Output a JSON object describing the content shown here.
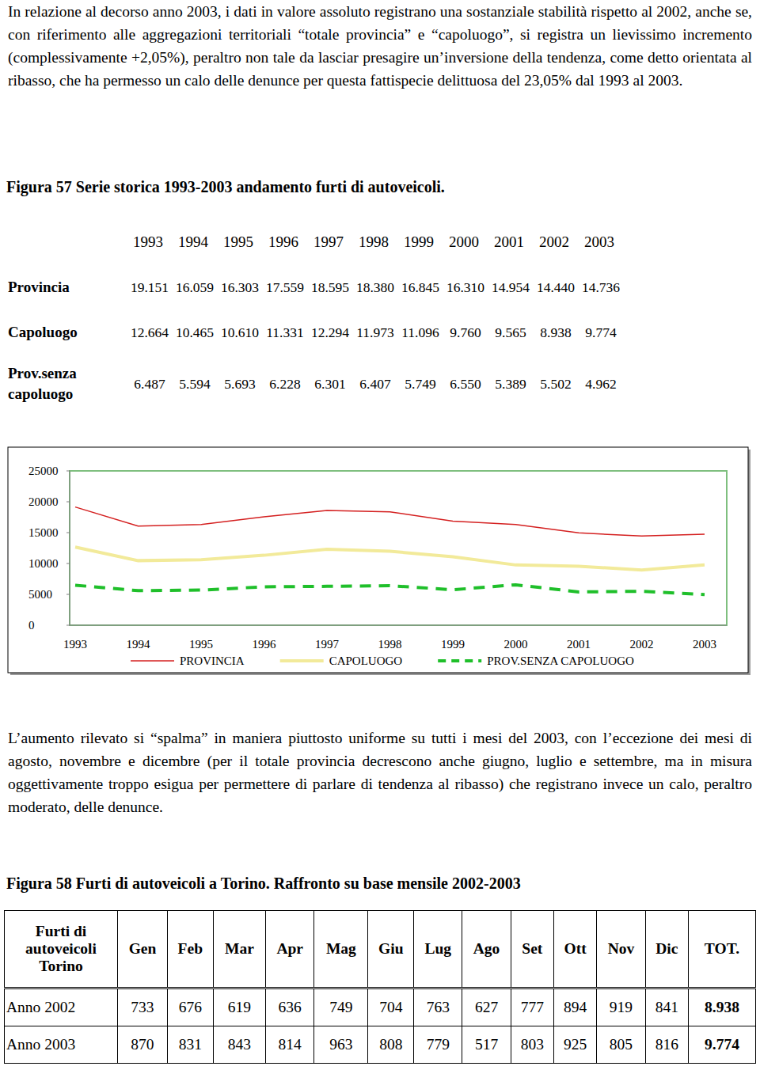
{
  "paragraphs": [
    "In relazione al decorso anno 2003, i dati in valore assoluto registrano una sostanziale stabilità rispetto al 2002, anche se, con riferimento alle aggregazioni territoriali “totale provincia” e “capoluogo”, si registra un lievissimo incremento (complessivamente +2,05%), peraltro non tale da lasciar presagire un’inversione della tendenza, come detto orientata al ribasso, che ha permesso un calo delle denunce per questa fattispecie delittuosa del 23,05% dal 1993 al 2003.",
    "L’aumento rilevato si “spalma” in maniera piuttosto uniforme su tutti i mesi del 2003, con l’eccezione dei mesi di agosto, novembre e dicembre (per il totale provincia decrescono anche giugno, luglio e settembre, ma in misura oggettivamente troppo esigua per permettere di parlare di tendenza al ribasso) che registrano invece un calo, peraltro moderato, delle denunce."
  ],
  "figure57": {
    "caption": "Figura 57 Serie storica 1993-2003 andamento furti di autoveicoli.",
    "table": {
      "columns": [
        "1993",
        "1994",
        "1995",
        "1996",
        "1997",
        "1998",
        "1999",
        "2000",
        "2001",
        "2002",
        "2003"
      ],
      "rows": [
        {
          "label": "Provincia",
          "values": [
            "19.151",
            "16.059",
            "16.303",
            "17.559",
            "18.595",
            "18.380",
            "16.845",
            "16.310",
            "14.954",
            "14.440",
            "14.736"
          ]
        },
        {
          "label": "Capoluogo",
          "values": [
            "12.664",
            "10.465",
            "10.610",
            "11.331",
            "12.294",
            "11.973",
            "11.096",
            "9.760",
            "9.565",
            "8.938",
            "9.774"
          ]
        },
        {
          "label": "Prov.senza capoluogo",
          "values": [
            "6.487",
            "5.594",
            "5.693",
            "6.228",
            "6.301",
            "6.407",
            "5.749",
            "6.550",
            "5.389",
            "5.502",
            "4.962"
          ]
        }
      ]
    }
  },
  "chart_data": {
    "type": "line",
    "categories": [
      "1993",
      "1994",
      "1995",
      "1996",
      "1997",
      "1998",
      "1999",
      "2000",
      "2001",
      "2002",
      "2003"
    ],
    "series": [
      {
        "name": "PROVINCIA",
        "color": "#d42020",
        "line_style": "solid",
        "values": [
          19151,
          16059,
          16303,
          17559,
          18595,
          18380,
          16845,
          16310,
          14954,
          14440,
          14736
        ]
      },
      {
        "name": "CAPOLUOGO",
        "color": "#f2ea9a",
        "line_style": "solid",
        "values": [
          12664,
          10465,
          10610,
          11331,
          12294,
          11973,
          11096,
          9760,
          9565,
          8938,
          9774
        ]
      },
      {
        "name": "PROV.SENZA CAPOLUOGO",
        "color": "#1fbf2a",
        "line_style": "dashed",
        "values": [
          6487,
          5594,
          5693,
          6228,
          6301,
          6407,
          5749,
          6550,
          5389,
          5502,
          4962
        ]
      }
    ],
    "ylim": [
      0,
      25000
    ],
    "yticks": [
      0,
      5000,
      10000,
      15000,
      20000,
      25000
    ],
    "grid": false,
    "legend": "bottom"
  },
  "figure58": {
    "caption": "Figura 58 Furti di autoveicoli a Torino. Raffronto su base mensile 2002-2003",
    "table": {
      "header": [
        "Furti di autoveicoli Torino",
        "Gen",
        "Feb",
        "Mar",
        "Apr",
        "Mag",
        "Giu",
        "Lug",
        "Ago",
        "Set",
        "Ott",
        "Nov",
        "Dic",
        "TOT."
      ],
      "rows": [
        [
          "Anno 2002",
          "733",
          "676",
          "619",
          "636",
          "749",
          "704",
          "763",
          "627",
          "777",
          "894",
          "919",
          "841",
          "8.938"
        ],
        [
          "Anno 2003",
          "870",
          "831",
          "843",
          "814",
          "963",
          "808",
          "779",
          "517",
          "803",
          "925",
          "805",
          "816",
          "9.774"
        ]
      ]
    }
  }
}
